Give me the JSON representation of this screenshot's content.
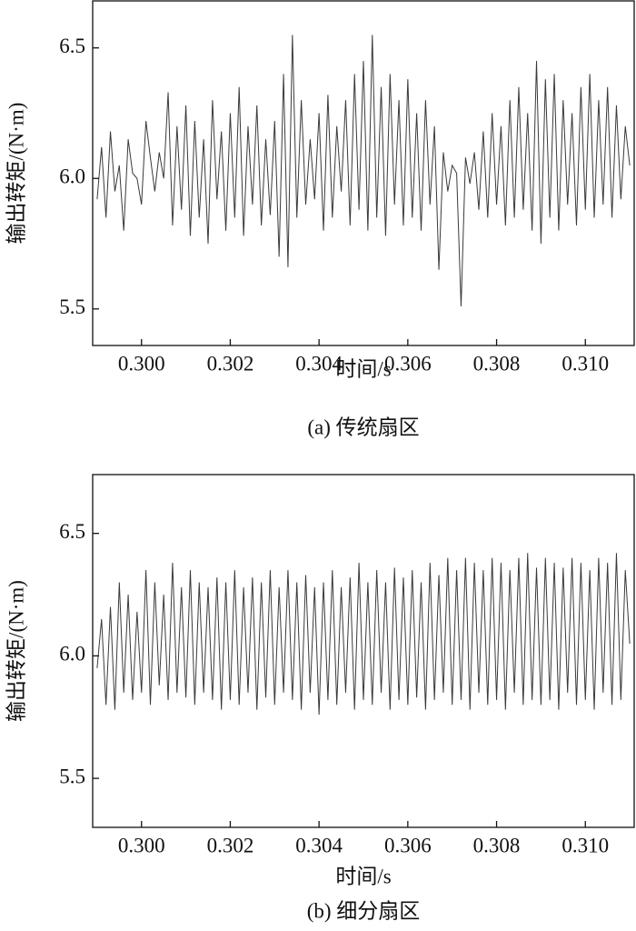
{
  "chart_data": [
    {
      "type": "line",
      "title": "(a) 传统扇区",
      "xlabel": "时间/s",
      "ylabel": "输出转矩/(N·m)",
      "color": "#3a3a3a",
      "xlim": [
        0.2989,
        0.3111
      ],
      "ylim": [
        5.36,
        6.68
      ],
      "xticks": [
        {
          "value": 0.3,
          "label": "0.300"
        },
        {
          "value": 0.302,
          "label": "0.302"
        },
        {
          "value": 0.304,
          "label": "0.304"
        },
        {
          "value": 0.306,
          "label": "0.306"
        },
        {
          "value": 0.308,
          "label": "0.308"
        },
        {
          "value": 0.31,
          "label": "0.310"
        }
      ],
      "yticks": [
        6.5,
        {
          "value": 6.0,
          "label": "6.0"
        },
        5.5
      ],
      "x": [
        0.299,
        0.2991,
        0.2992,
        0.2993,
        0.2994,
        0.2995,
        0.2996,
        0.2997,
        0.2998,
        0.2999,
        0.3,
        0.3001,
        0.3002,
        0.3003,
        0.3004,
        0.3005,
        0.3006,
        0.3007,
        0.3008,
        0.3009,
        0.301,
        0.3011,
        0.3012,
        0.3013,
        0.3014,
        0.3015,
        0.3016,
        0.3017,
        0.3018,
        0.3019,
        0.302,
        0.3021,
        0.3022,
        0.3023,
        0.3024,
        0.3025,
        0.3026,
        0.3027,
        0.3028,
        0.3029,
        0.303,
        0.3031,
        0.3032,
        0.3033,
        0.3034,
        0.3035,
        0.3036,
        0.3037,
        0.3038,
        0.3039,
        0.304,
        0.3041,
        0.3042,
        0.3043,
        0.3044,
        0.3045,
        0.3046,
        0.3047,
        0.3048,
        0.3049,
        0.305,
        0.3051,
        0.3052,
        0.3053,
        0.3054,
        0.3055,
        0.3056,
        0.3057,
        0.3058,
        0.3059,
        0.306,
        0.3061,
        0.3062,
        0.3063,
        0.3064,
        0.3065,
        0.3066,
        0.3067,
        0.3068,
        0.3069,
        0.307,
        0.3071,
        0.3072,
        0.3073,
        0.3074,
        0.3075,
        0.3076,
        0.3077,
        0.3078,
        0.3079,
        0.308,
        0.3081,
        0.3082,
        0.3083,
        0.3084,
        0.3085,
        0.3086,
        0.3087,
        0.3088,
        0.3089,
        0.309,
        0.3091,
        0.3092,
        0.3093,
        0.3094,
        0.3095,
        0.3096,
        0.3097,
        0.3098,
        0.3099,
        0.31,
        0.3101,
        0.3102,
        0.3103,
        0.3104,
        0.3105,
        0.3106,
        0.3107,
        0.3108,
        0.3109,
        0.311
      ],
      "values": [
        5.92,
        6.12,
        5.85,
        6.18,
        5.95,
        6.05,
        5.8,
        6.15,
        6.02,
        6.0,
        5.9,
        6.22,
        6.08,
        5.95,
        6.1,
        6.0,
        6.33,
        5.82,
        6.2,
        5.88,
        6.28,
        5.78,
        6.22,
        5.85,
        6.15,
        5.75,
        6.3,
        5.92,
        6.18,
        5.8,
        6.25,
        5.85,
        6.35,
        5.78,
        6.2,
        5.9,
        6.28,
        5.82,
        6.15,
        5.86,
        6.22,
        5.7,
        6.4,
        5.66,
        6.55,
        5.85,
        6.3,
        5.9,
        6.15,
        5.92,
        6.25,
        5.8,
        6.32,
        5.85,
        6.2,
        5.95,
        6.3,
        5.82,
        6.4,
        5.88,
        6.45,
        5.8,
        6.55,
        5.85,
        6.35,
        5.78,
        6.4,
        5.9,
        6.3,
        5.82,
        6.38,
        5.85,
        6.25,
        5.8,
        6.3,
        5.9,
        6.2,
        5.65,
        6.1,
        5.95,
        6.05,
        6.02,
        5.51,
        6.08,
        5.98,
        6.1,
        5.88,
        6.18,
        5.85,
        6.25,
        5.9,
        6.2,
        5.82,
        6.3,
        5.85,
        6.35,
        5.88,
        6.25,
        5.8,
        6.45,
        5.75,
        6.38,
        5.85,
        6.4,
        5.8,
        6.3,
        5.9,
        6.25,
        5.82,
        6.35,
        5.88,
        6.4,
        5.85,
        6.3,
        5.9,
        6.35,
        5.85,
        6.28,
        5.92,
        6.2,
        6.05
      ]
    },
    {
      "type": "line",
      "title": "(b) 细分扇区",
      "xlabel": "时间/s",
      "ylabel": "输出转矩/(N·m)",
      "color": "#3a3a3a",
      "xlim": [
        0.2989,
        0.3111
      ],
      "ylim": [
        5.3,
        6.74
      ],
      "xticks": [
        {
          "value": 0.3,
          "label": "0.300"
        },
        {
          "value": 0.302,
          "label": "0.302"
        },
        {
          "value": 0.304,
          "label": "0.304"
        },
        {
          "value": 0.306,
          "label": "0.306"
        },
        {
          "value": 0.308,
          "label": "0.308"
        },
        {
          "value": 0.31,
          "label": "0.310"
        }
      ],
      "yticks": [
        6.5,
        {
          "value": 6.0,
          "label": "6.0"
        },
        5.5
      ],
      "x": [
        0.299,
        0.2991,
        0.2992,
        0.2993,
        0.2994,
        0.2995,
        0.2996,
        0.2997,
        0.2998,
        0.2999,
        0.3,
        0.3001,
        0.3002,
        0.3003,
        0.3004,
        0.3005,
        0.3006,
        0.3007,
        0.3008,
        0.3009,
        0.301,
        0.3011,
        0.3012,
        0.3013,
        0.3014,
        0.3015,
        0.3016,
        0.3017,
        0.3018,
        0.3019,
        0.302,
        0.3021,
        0.3022,
        0.3023,
        0.3024,
        0.3025,
        0.3026,
        0.3027,
        0.3028,
        0.3029,
        0.303,
        0.3031,
        0.3032,
        0.3033,
        0.3034,
        0.3035,
        0.3036,
        0.3037,
        0.3038,
        0.3039,
        0.304,
        0.3041,
        0.3042,
        0.3043,
        0.3044,
        0.3045,
        0.3046,
        0.3047,
        0.3048,
        0.3049,
        0.305,
        0.3051,
        0.3052,
        0.3053,
        0.3054,
        0.3055,
        0.3056,
        0.3057,
        0.3058,
        0.3059,
        0.306,
        0.3061,
        0.3062,
        0.3063,
        0.3064,
        0.3065,
        0.3066,
        0.3067,
        0.3068,
        0.3069,
        0.307,
        0.3071,
        0.3072,
        0.3073,
        0.3074,
        0.3075,
        0.3076,
        0.3077,
        0.3078,
        0.3079,
        0.308,
        0.3081,
        0.3082,
        0.3083,
        0.3084,
        0.3085,
        0.3086,
        0.3087,
        0.3088,
        0.3089,
        0.309,
        0.3091,
        0.3092,
        0.3093,
        0.3094,
        0.3095,
        0.3096,
        0.3097,
        0.3098,
        0.3099,
        0.31,
        0.3101,
        0.3102,
        0.3103,
        0.3104,
        0.3105,
        0.3106,
        0.3107,
        0.3108,
        0.3109,
        0.311
      ],
      "values": [
        5.95,
        6.15,
        5.8,
        6.2,
        5.78,
        6.3,
        5.85,
        6.25,
        5.82,
        6.18,
        5.85,
        6.35,
        5.8,
        6.3,
        5.88,
        6.25,
        5.82,
        6.38,
        5.85,
        6.28,
        5.83,
        6.35,
        5.8,
        6.3,
        5.85,
        6.28,
        5.82,
        6.32,
        5.78,
        6.3,
        5.82,
        6.35,
        5.8,
        6.28,
        5.85,
        6.32,
        5.78,
        6.3,
        5.83,
        6.35,
        5.8,
        6.28,
        5.85,
        6.35,
        5.82,
        6.3,
        5.78,
        6.33,
        5.85,
        6.28,
        5.76,
        6.3,
        5.82,
        6.35,
        5.8,
        6.28,
        5.85,
        6.32,
        5.78,
        6.38,
        5.82,
        6.3,
        5.8,
        6.35,
        5.85,
        6.3,
        5.78,
        6.36,
        5.82,
        6.32,
        5.8,
        6.35,
        5.83,
        6.3,
        5.78,
        6.38,
        5.82,
        6.33,
        5.85,
        6.4,
        5.8,
        6.35,
        5.82,
        6.4,
        5.78,
        6.38,
        5.85,
        6.35,
        5.8,
        6.4,
        5.82,
        6.38,
        5.78,
        6.35,
        5.85,
        6.4,
        5.8,
        6.42,
        5.82,
        6.36,
        5.8,
        6.4,
        5.82,
        6.38,
        5.78,
        6.36,
        5.85,
        6.4,
        5.8,
        6.38,
        5.82,
        6.35,
        5.78,
        6.4,
        5.85,
        6.38,
        5.8,
        6.42,
        5.82,
        6.35,
        6.05
      ]
    }
  ]
}
